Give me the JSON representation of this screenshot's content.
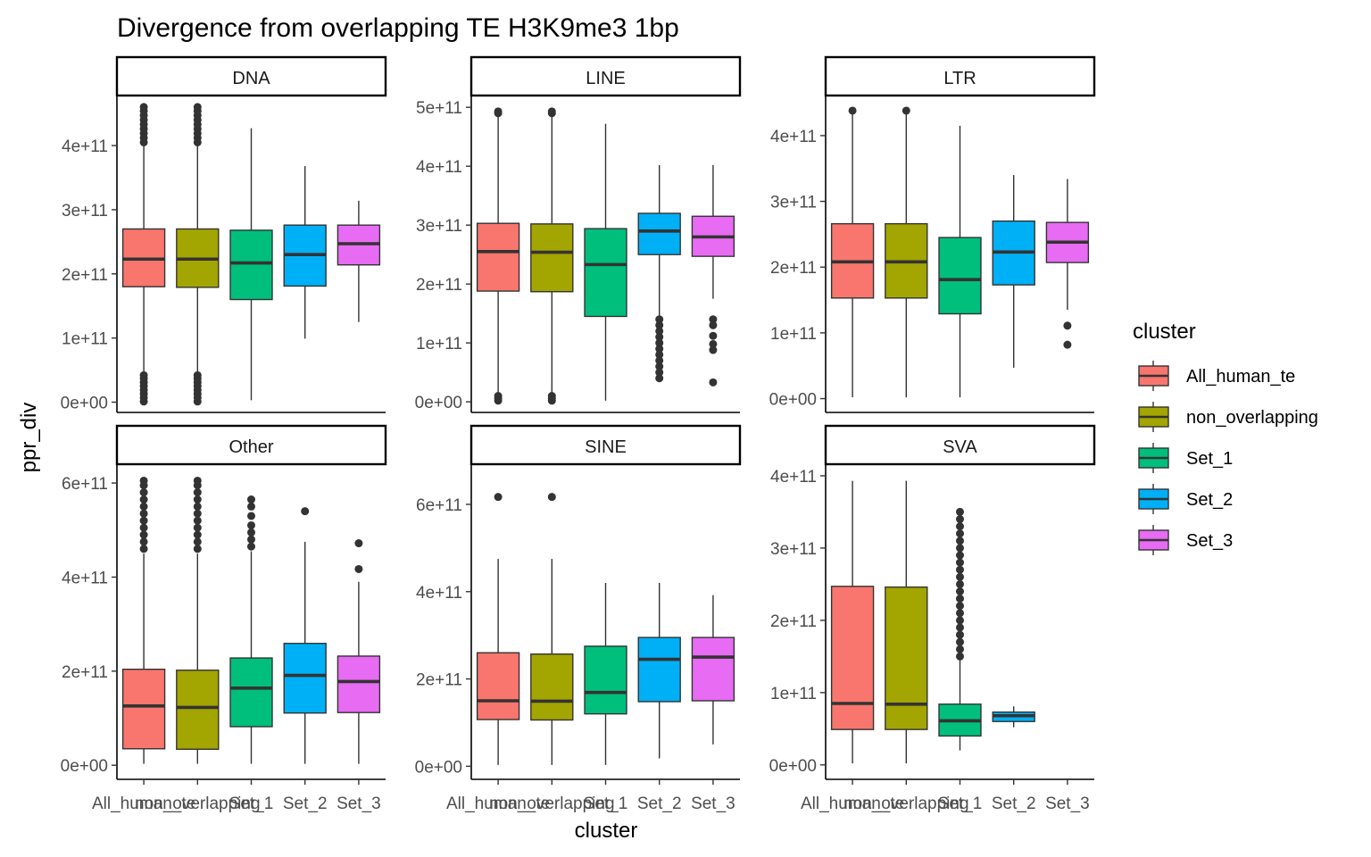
{
  "chart_data": {
    "type": "boxplot",
    "title": "Divergence from overlapping TE H3K9me3 1bp",
    "xlabel": "cluster",
    "ylabel": "ppr_div",
    "categories": [
      "All_human_te",
      "non_overlapping",
      "Set_1",
      "Set_2",
      "Set_3"
    ],
    "legend": {
      "title": "cluster",
      "position": "right",
      "entries": [
        {
          "name": "All_human_te",
          "color": "#F8766D"
        },
        {
          "name": "non_overlapping",
          "color": "#A3A500"
        },
        {
          "name": "Set_1",
          "color": "#00BF7D"
        },
        {
          "name": "Set_2",
          "color": "#00B0F6"
        },
        {
          "name": "Set_3",
          "color": "#E76BF3"
        }
      ]
    },
    "grid": false,
    "facets": [
      {
        "name": "DNA",
        "ylim": [
          -16000000000.0,
          478000000000.0
        ],
        "yticks": [
          0,
          100000000000.0,
          200000000000.0,
          300000000000.0,
          400000000000.0
        ],
        "ytick_labels": [
          "0e+00",
          "1e+11",
          "2e+11",
          "3e+11",
          "4e+11"
        ],
        "boxes": [
          {
            "cluster": "All_human_te",
            "whisker_low": 0,
            "q1": 180000000000.0,
            "median": 223000000000.0,
            "q3": 270000000000.0,
            "whisker_high": 460000000000.0,
            "outliers": [
              1000000000.0,
              7000000000.0,
              13000000000.0,
              19000000000.0,
              25000000000.0,
              31000000000.0,
              37000000000.0,
              42000000000.0,
              405000000000.0,
              412000000000.0,
              419000000000.0,
              426000000000.0,
              433000000000.0,
              440000000000.0,
              447000000000.0,
              454000000000.0,
              460000000000.0
            ]
          },
          {
            "cluster": "non_overlapping",
            "whisker_low": 0,
            "q1": 179000000000.0,
            "median": 223000000000.0,
            "q3": 270000000000.0,
            "whisker_high": 460000000000.0,
            "outliers": [
              1000000000.0,
              7000000000.0,
              13000000000.0,
              19000000000.0,
              25000000000.0,
              31000000000.0,
              37000000000.0,
              42000000000.0,
              405000000000.0,
              412000000000.0,
              419000000000.0,
              426000000000.0,
              433000000000.0,
              440000000000.0,
              447000000000.0,
              454000000000.0,
              460000000000.0
            ]
          },
          {
            "cluster": "Set_1",
            "whisker_low": 3000000000.0,
            "q1": 160000000000.0,
            "median": 217000000000.0,
            "q3": 268000000000.0,
            "whisker_high": 427000000000.0,
            "outliers": []
          },
          {
            "cluster": "Set_2",
            "whisker_low": 99000000000.0,
            "q1": 181000000000.0,
            "median": 230000000000.0,
            "q3": 276000000000.0,
            "whisker_high": 368000000000.0,
            "outliers": []
          },
          {
            "cluster": "Set_3",
            "whisker_low": 125000000000.0,
            "q1": 214000000000.0,
            "median": 247000000000.0,
            "q3": 276000000000.0,
            "whisker_high": 314000000000.0,
            "outliers": []
          }
        ]
      },
      {
        "name": "LINE",
        "ylim": [
          -18000000000.0,
          520000000000.0
        ],
        "yticks": [
          0,
          100000000000.0,
          200000000000.0,
          300000000000.0,
          400000000000.0,
          500000000000.0
        ],
        "ytick_labels": [
          "0e+00",
          "1e+11",
          "2e+11",
          "3e+11",
          "4e+11",
          "5e+11"
        ],
        "boxes": [
          {
            "cluster": "All_human_te",
            "whisker_low": 2000000000.0,
            "q1": 188000000000.0,
            "median": 255000000000.0,
            "q3": 303000000000.0,
            "whisker_high": 488000000000.0,
            "outliers": [
              2000000000.0,
              6000000000.0,
              10000000000.0,
              490000000000.0,
              493000000000.0
            ]
          },
          {
            "cluster": "non_overlapping",
            "whisker_low": 2000000000.0,
            "q1": 187000000000.0,
            "median": 254000000000.0,
            "q3": 302000000000.0,
            "whisker_high": 488000000000.0,
            "outliers": [
              2000000000.0,
              6000000000.0,
              10000000000.0,
              490000000000.0,
              493000000000.0
            ]
          },
          {
            "cluster": "Set_1",
            "whisker_low": 2000000000.0,
            "q1": 145000000000.0,
            "median": 233000000000.0,
            "q3": 294000000000.0,
            "whisker_high": 472000000000.0,
            "outliers": []
          },
          {
            "cluster": "Set_2",
            "whisker_low": 145000000000.0,
            "q1": 250000000000.0,
            "median": 290000000000.0,
            "q3": 320000000000.0,
            "whisker_high": 402000000000.0,
            "outliers": [
              40000000000.0,
              50000000000.0,
              60000000000.0,
              70000000000.0,
              80000000000.0,
              90000000000.0,
              100000000000.0,
              110000000000.0,
              120000000000.0,
              130000000000.0,
              140000000000.0
            ]
          },
          {
            "cluster": "Set_3",
            "whisker_low": 175000000000.0,
            "q1": 247000000000.0,
            "median": 280000000000.0,
            "q3": 315000000000.0,
            "whisker_high": 402000000000.0,
            "outliers": [
              33000000000.0,
              88000000000.0,
              98000000000.0,
              112000000000.0,
              130000000000.0,
              140000000000.0
            ]
          }
        ]
      },
      {
        "name": "LTR",
        "ylim": [
          -21000000000.0,
          461000000000.0
        ],
        "yticks": [
          0,
          100000000000.0,
          200000000000.0,
          300000000000.0,
          400000000000.0
        ],
        "ytick_labels": [
          "0e+00",
          "1e+11",
          "2e+11",
          "3e+11",
          "4e+11"
        ],
        "boxes": [
          {
            "cluster": "All_human_te",
            "whisker_low": 2000000000.0,
            "q1": 153000000000.0,
            "median": 208000000000.0,
            "q3": 266000000000.0,
            "whisker_high": 438000000000.0,
            "outliers": [
              438000000000.0
            ]
          },
          {
            "cluster": "non_overlapping",
            "whisker_low": 2000000000.0,
            "q1": 153000000000.0,
            "median": 208000000000.0,
            "q3": 266000000000.0,
            "whisker_high": 438000000000.0,
            "outliers": [
              438000000000.0
            ]
          },
          {
            "cluster": "Set_1",
            "whisker_low": 2000000000.0,
            "q1": 129000000000.0,
            "median": 181000000000.0,
            "q3": 245000000000.0,
            "whisker_high": 415000000000.0,
            "outliers": []
          },
          {
            "cluster": "Set_2",
            "whisker_low": 47000000000.0,
            "q1": 173000000000.0,
            "median": 223000000000.0,
            "q3": 270000000000.0,
            "whisker_high": 340000000000.0,
            "outliers": []
          },
          {
            "cluster": "Set_3",
            "whisker_low": 135000000000.0,
            "q1": 207000000000.0,
            "median": 238000000000.0,
            "q3": 268000000000.0,
            "whisker_high": 334000000000.0,
            "outliers": [
              82000000000.0,
              111000000000.0
            ]
          }
        ]
      },
      {
        "name": "Other",
        "ylim": [
          -30000000000.0,
          640000000000.0
        ],
        "yticks": [
          0,
          200000000000.0,
          400000000000.0,
          600000000000.0
        ],
        "ytick_labels": [
          "0e+00",
          "2e+11",
          "4e+11",
          "6e+11"
        ],
        "boxes": [
          {
            "cluster": "All_human_te",
            "whisker_low": 3000000000.0,
            "q1": 35000000000.0,
            "median": 126000000000.0,
            "q3": 204000000000.0,
            "whisker_high": 450000000000.0,
            "outliers": [
              460000000000.0,
              475000000000.0,
              490000000000.0,
              505000000000.0,
              520000000000.0,
              535000000000.0,
              550000000000.0,
              565000000000.0,
              580000000000.0,
              595000000000.0,
              605000000000.0
            ]
          },
          {
            "cluster": "non_overlapping",
            "whisker_low": 3000000000.0,
            "q1": 34000000000.0,
            "median": 123000000000.0,
            "q3": 202000000000.0,
            "whisker_high": 450000000000.0,
            "outliers": [
              460000000000.0,
              475000000000.0,
              490000000000.0,
              505000000000.0,
              520000000000.0,
              535000000000.0,
              550000000000.0,
              565000000000.0,
              580000000000.0,
              595000000000.0,
              605000000000.0
            ]
          },
          {
            "cluster": "Set_1",
            "whisker_low": 3000000000.0,
            "q1": 82000000000.0,
            "median": 164000000000.0,
            "q3": 228000000000.0,
            "whisker_high": 455000000000.0,
            "outliers": [
              465000000000.0,
              480000000000.0,
              495000000000.0,
              510000000000.0,
              530000000000.0,
              550000000000.0,
              565000000000.0
            ]
          },
          {
            "cluster": "Set_2",
            "whisker_low": 3000000000.0,
            "q1": 111000000000.0,
            "median": 191000000000.0,
            "q3": 259000000000.0,
            "whisker_high": 475000000000.0,
            "outliers": [
              540000000000.0
            ]
          },
          {
            "cluster": "Set_3",
            "whisker_low": 3000000000.0,
            "q1": 112000000000.0,
            "median": 178000000000.0,
            "q3": 232000000000.0,
            "whisker_high": 390000000000.0,
            "outliers": [
              417000000000.0,
              472000000000.0
            ]
          }
        ]
      },
      {
        "name": "SINE",
        "ylim": [
          -30000000000.0,
          692000000000.0
        ],
        "yticks": [
          0,
          200000000000.0,
          400000000000.0,
          600000000000.0
        ],
        "ytick_labels": [
          "0e+00",
          "2e+11",
          "4e+11",
          "6e+11"
        ],
        "boxes": [
          {
            "cluster": "All_human_te",
            "whisker_low": 3000000000.0,
            "q1": 107000000000.0,
            "median": 150000000000.0,
            "q3": 260000000000.0,
            "whisker_high": 475000000000.0,
            "outliers": [
              617000000000.0
            ]
          },
          {
            "cluster": "non_overlapping",
            "whisker_low": 3000000000.0,
            "q1": 106000000000.0,
            "median": 149000000000.0,
            "q3": 257000000000.0,
            "whisker_high": 475000000000.0,
            "outliers": [
              617000000000.0
            ]
          },
          {
            "cluster": "Set_1",
            "whisker_low": 3000000000.0,
            "q1": 120000000000.0,
            "median": 169000000000.0,
            "q3": 275000000000.0,
            "whisker_high": 420000000000.0,
            "outliers": []
          },
          {
            "cluster": "Set_2",
            "whisker_low": 18000000000.0,
            "q1": 148000000000.0,
            "median": 245000000000.0,
            "q3": 295000000000.0,
            "whisker_high": 420000000000.0,
            "outliers": []
          },
          {
            "cluster": "Set_3",
            "whisker_low": 50000000000.0,
            "q1": 150000000000.0,
            "median": 250000000000.0,
            "q3": 295000000000.0,
            "whisker_high": 392000000000.0,
            "outliers": []
          }
        ]
      },
      {
        "name": "SVA",
        "ylim": [
          -20000000000.0,
          416000000000.0
        ],
        "yticks": [
          0,
          100000000000.0,
          200000000000.0,
          300000000000.0,
          400000000000.0
        ],
        "ytick_labels": [
          "0e+00",
          "1e+11",
          "2e+11",
          "3e+11",
          "4e+11"
        ],
        "boxes": [
          {
            "cluster": "All_human_te",
            "whisker_low": 2000000000.0,
            "q1": 49000000000.0,
            "median": 85000000000.0,
            "q3": 247000000000.0,
            "whisker_high": 393000000000.0,
            "outliers": []
          },
          {
            "cluster": "non_overlapping",
            "whisker_low": 2000000000.0,
            "q1": 49000000000.0,
            "median": 84000000000.0,
            "q3": 246000000000.0,
            "whisker_high": 393000000000.0,
            "outliers": []
          },
          {
            "cluster": "Set_1",
            "whisker_low": 20000000000.0,
            "q1": 40000000000.0,
            "median": 61000000000.0,
            "q3": 84000000000.0,
            "whisker_high": 145000000000.0,
            "outliers": [
              150000000000.0,
              160000000000.0,
              170000000000.0,
              180000000000.0,
              190000000000.0,
              200000000000.0,
              210000000000.0,
              220000000000.0,
              230000000000.0,
              240000000000.0,
              250000000000.0,
              260000000000.0,
              270000000000.0,
              280000000000.0,
              290000000000.0,
              300000000000.0,
              310000000000.0,
              320000000000.0,
              330000000000.0,
              340000000000.0,
              350000000000.0
            ]
          },
          {
            "cluster": "Set_2",
            "whisker_low": 52000000000.0,
            "q1": 60000000000.0,
            "median": 68000000000.0,
            "q3": 73000000000.0,
            "whisker_high": 81000000000.0,
            "outliers": []
          }
        ]
      }
    ]
  }
}
